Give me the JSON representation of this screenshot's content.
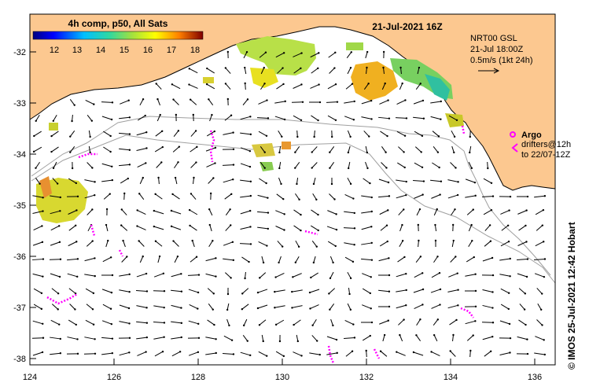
{
  "title": "21-Jul-2021 16Z",
  "colorbar": {
    "title": "4h comp, p50, All Sats",
    "ticks": [
      "12",
      "13",
      "14",
      "15",
      "16",
      "17",
      "18"
    ],
    "colors": [
      "#00007f",
      "#0000ff",
      "#007fff",
      "#00ffff",
      "#7fff7f",
      "#ffff00",
      "#ff7f00",
      "#ff0000",
      "#7f0000"
    ]
  },
  "currents_legend": {
    "product": "NRT00 GSL",
    "time": "21-Jul 18:00Z",
    "scale": "0.5m/s (1kt 24h)"
  },
  "argo_legend": {
    "argo": "Argo",
    "drifters": "drifters@12h",
    "period": "to 22/07-12Z"
  },
  "side_credit": "© IMOS 25-Jul-2021 12:42 Hobart",
  "x_ticks": [
    "124",
    "126",
    "128",
    "130",
    "132",
    "134",
    "136"
  ],
  "y_ticks": [
    "-32",
    "-33",
    "-34",
    "-35",
    "-36",
    "-37",
    "-38"
  ],
  "colors": {
    "land": "#fcc890",
    "arrow": "#000000",
    "drifter": "#ff00ff",
    "bathy": "#a0a0a0"
  }
}
